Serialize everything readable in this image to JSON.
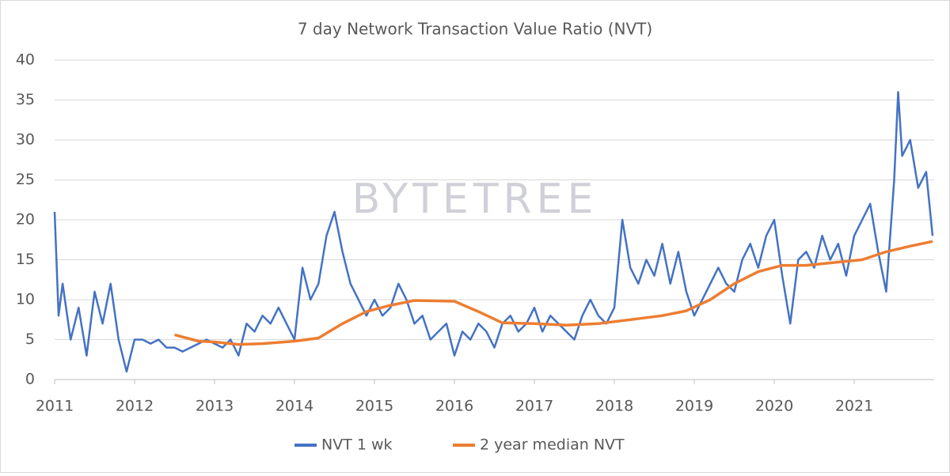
{
  "chart_data": {
    "type": "line",
    "title": "7 day Network Transaction Value Ratio (NVT)",
    "watermark": "BYTETREE",
    "xlim": [
      2011,
      2022
    ],
    "xticks": [
      2011,
      2012,
      2013,
      2014,
      2015,
      2016,
      2017,
      2018,
      2019,
      2020,
      2021
    ],
    "ylim": [
      0,
      40
    ],
    "yticks": [
      0,
      5,
      10,
      15,
      20,
      25,
      30,
      35,
      40
    ],
    "grid": true,
    "legend": "bottom",
    "series": [
      {
        "name": "NVT 1 wk",
        "color": "#4472c4",
        "x": [
          2011.0,
          2011.05,
          2011.1,
          2011.2,
          2011.3,
          2011.4,
          2011.5,
          2011.6,
          2011.7,
          2011.8,
          2011.9,
          2012.0,
          2012.1,
          2012.2,
          2012.3,
          2012.4,
          2012.5,
          2012.6,
          2012.7,
          2012.8,
          2012.9,
          2013.0,
          2013.1,
          2013.2,
          2013.3,
          2013.4,
          2013.5,
          2013.6,
          2013.7,
          2013.8,
          2013.9,
          2014.0,
          2014.1,
          2014.2,
          2014.3,
          2014.4,
          2014.5,
          2014.6,
          2014.7,
          2014.8,
          2014.9,
          2015.0,
          2015.1,
          2015.2,
          2015.3,
          2015.4,
          2015.5,
          2015.6,
          2015.7,
          2015.8,
          2015.9,
          2016.0,
          2016.1,
          2016.2,
          2016.3,
          2016.4,
          2016.5,
          2016.6,
          2016.7,
          2016.8,
          2016.9,
          2017.0,
          2017.1,
          2017.2,
          2017.3,
          2017.4,
          2017.5,
          2017.6,
          2017.7,
          2017.8,
          2017.9,
          2018.0,
          2018.1,
          2018.2,
          2018.3,
          2018.4,
          2018.5,
          2018.6,
          2018.7,
          2018.8,
          2018.9,
          2019.0,
          2019.1,
          2019.2,
          2019.3,
          2019.4,
          2019.5,
          2019.6,
          2019.7,
          2019.8,
          2019.9,
          2020.0,
          2020.1,
          2020.2,
          2020.3,
          2020.4,
          2020.5,
          2020.6,
          2020.7,
          2020.8,
          2020.9,
          2021.0,
          2021.1,
          2021.2,
          2021.3,
          2021.4,
          2021.5,
          2021.55,
          2021.6,
          2021.7,
          2021.8,
          2021.9,
          2021.98
        ],
        "values": [
          21,
          8,
          12,
          5,
          9,
          3,
          11,
          7,
          12,
          5,
          1,
          5,
          5,
          4.5,
          5,
          4,
          4,
          3.5,
          4,
          4.5,
          5,
          4.5,
          4,
          5,
          3,
          7,
          6,
          8,
          7,
          9,
          7,
          5,
          14,
          10,
          12,
          18,
          21,
          16,
          12,
          10,
          8,
          10,
          8,
          9,
          12,
          10,
          7,
          8,
          5,
          6,
          7,
          3,
          6,
          5,
          7,
          6,
          4,
          7,
          8,
          6,
          7,
          9,
          6,
          8,
          7,
          6,
          5,
          8,
          10,
          8,
          7,
          9,
          20,
          14,
          12,
          15,
          13,
          17,
          12,
          16,
          11,
          8,
          10,
          12,
          14,
          12,
          11,
          15,
          17,
          14,
          18,
          20,
          13,
          7,
          15,
          16,
          14,
          18,
          15,
          17,
          13,
          18,
          20,
          22,
          16,
          11,
          25,
          36,
          28,
          30,
          24,
          26,
          18
        ]
      },
      {
        "name": "2 year median NVT",
        "color": "#ed7d31",
        "x": [
          2012.5,
          2012.8,
          2013.0,
          2013.3,
          2013.6,
          2014.0,
          2014.3,
          2014.6,
          2014.9,
          2015.2,
          2015.5,
          2016.0,
          2016.3,
          2016.6,
          2017.0,
          2017.4,
          2017.8,
          2018.2,
          2018.6,
          2018.9,
          2019.2,
          2019.5,
          2019.8,
          2020.1,
          2020.4,
          2020.8,
          2021.1,
          2021.4,
          2021.7,
          2021.98
        ],
        "values": [
          5.6,
          4.8,
          4.7,
          4.4,
          4.5,
          4.8,
          5.2,
          7,
          8.5,
          9.3,
          9.9,
          9.8,
          8.5,
          7.1,
          7.0,
          6.8,
          7.0,
          7.5,
          8.0,
          8.6,
          10,
          12,
          13.5,
          14.3,
          14.3,
          14.7,
          15,
          16,
          16.7,
          17.3
        ]
      }
    ]
  }
}
